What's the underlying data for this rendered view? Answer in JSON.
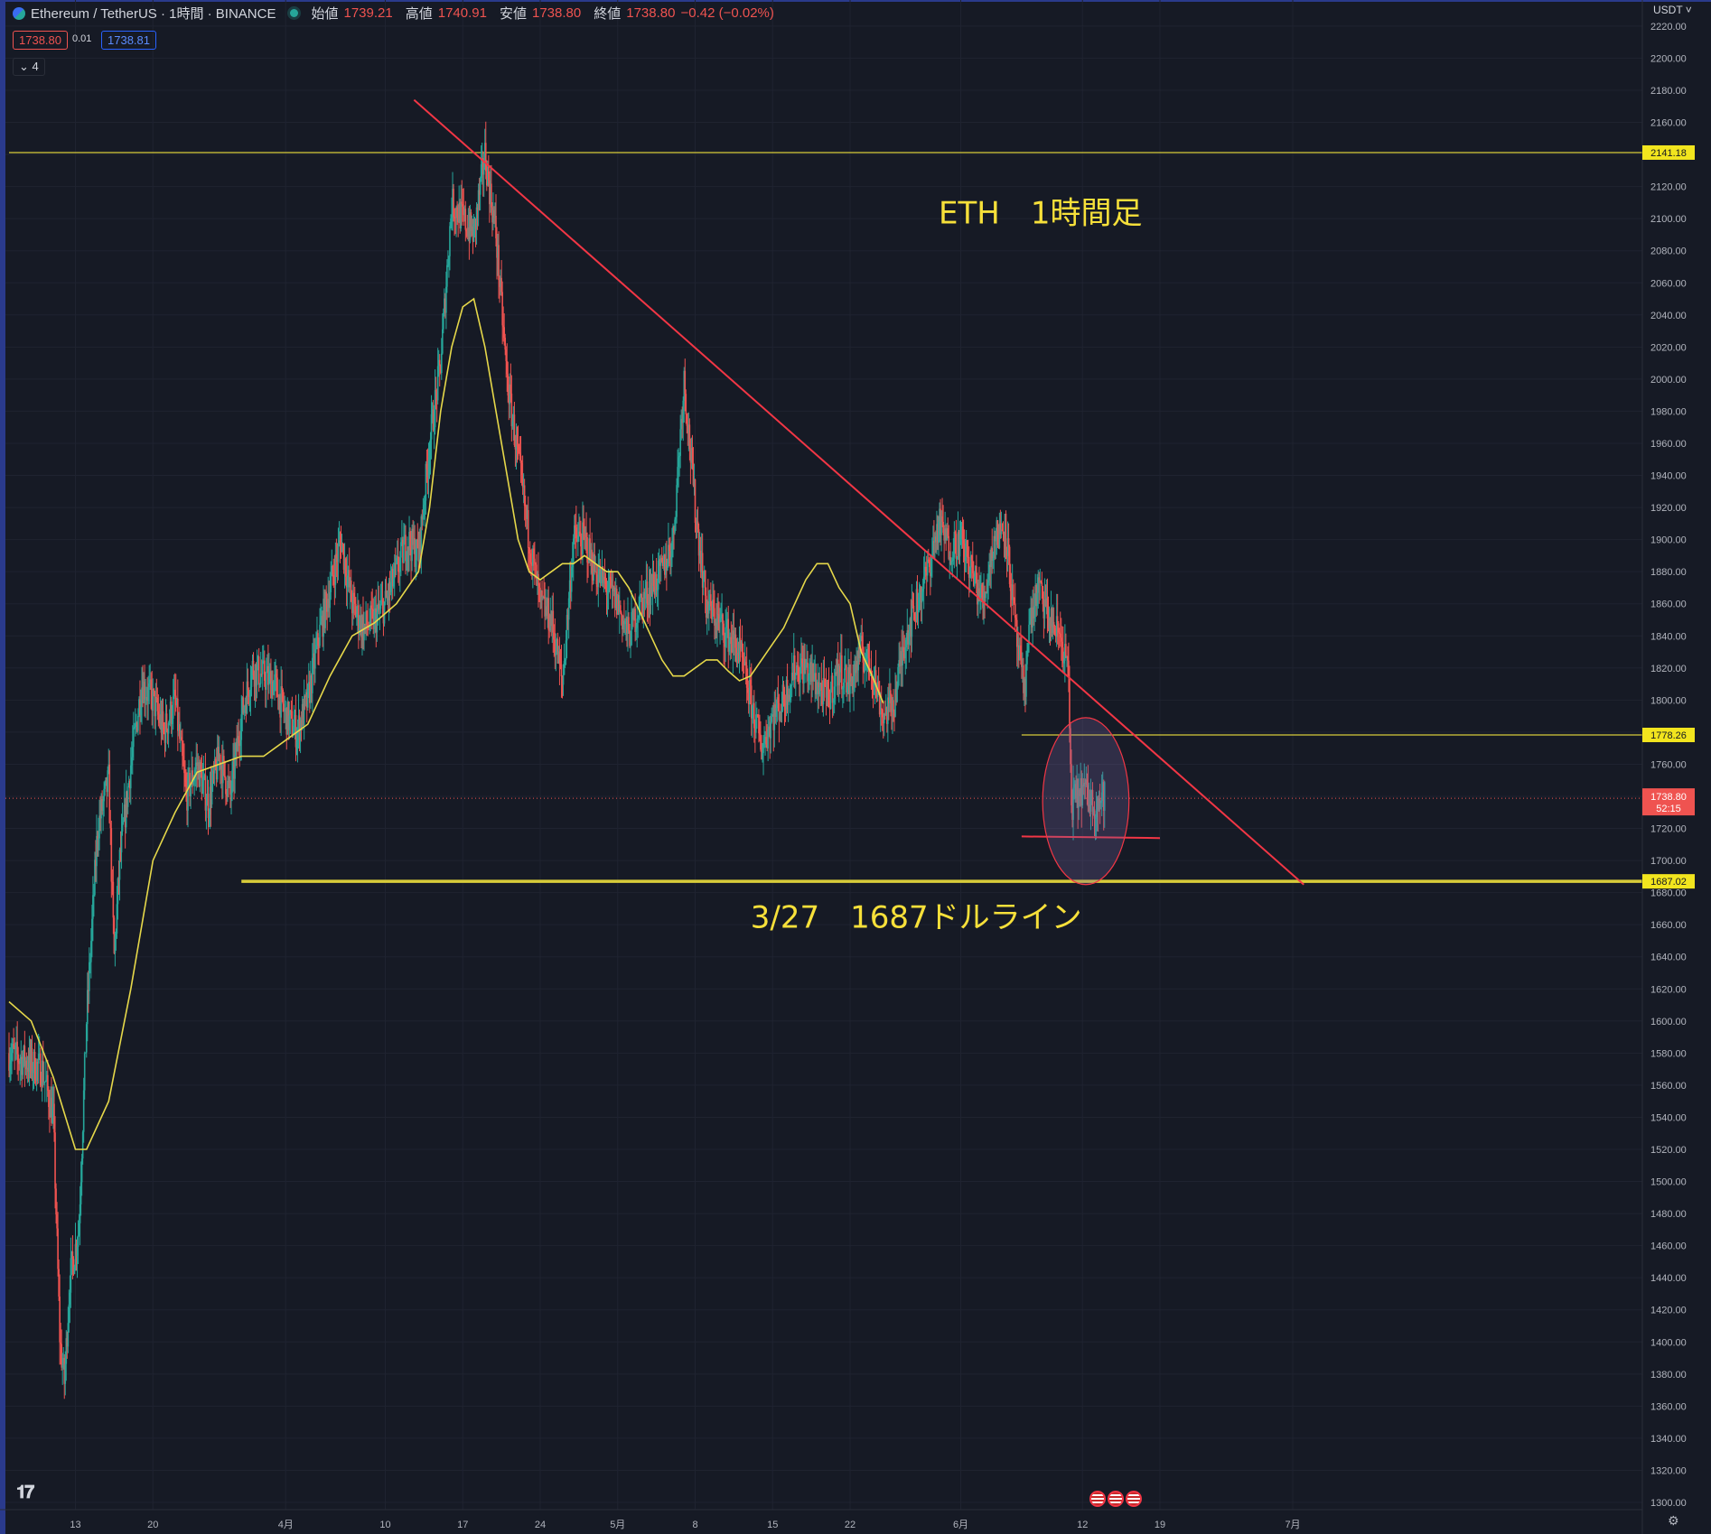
{
  "header": {
    "symbol": "Ethereum / TetherUS · 1時間 · BINANCE",
    "open_label": "始値",
    "open": "1739.21",
    "high_label": "高値",
    "high": "1740.91",
    "low_label": "安値",
    "low": "1738.80",
    "close_label": "終値",
    "close": "1738.80",
    "change": "−0.42 (−0.02%)"
  },
  "quote": {
    "bid": "1738.80",
    "spread": "0.01",
    "ask": "1738.81"
  },
  "indicators_collapse": "4",
  "currency": "USDT",
  "colors": {
    "background": "#161a25",
    "up": "#26a69a",
    "down": "#ef5350",
    "ma": "#e6d84a",
    "trendline": "#f23645",
    "hline": "#d8cc3a",
    "text_annotation": "#f7e03a"
  },
  "chart_data": {
    "type": "candlestick",
    "title": "ETH　1時間足",
    "symbol": "ETHUSDT",
    "timeframe": "1時間",
    "xlabel": "",
    "ylabel": "",
    "ylim": [
      1295,
      2225
    ],
    "y_ticks": [
      2220,
      2200,
      2180,
      2160,
      2140,
      2120,
      2100,
      2080,
      2060,
      2040,
      2020,
      2000,
      1980,
      1960,
      1940,
      1920,
      1900,
      1880,
      1860,
      1840,
      1820,
      1800,
      1780,
      1760,
      1740,
      1720,
      1700,
      1680,
      1660,
      1640,
      1620,
      1600,
      1580,
      1560,
      1540,
      1520,
      1500,
      1480,
      1460,
      1440,
      1420,
      1400,
      1380,
      1360,
      1340,
      1320,
      1300
    ],
    "x_ticks": [
      {
        "label": "13",
        "t": 6
      },
      {
        "label": "20",
        "t": 13
      },
      {
        "label": "4月",
        "t": 25
      },
      {
        "label": "10",
        "t": 34
      },
      {
        "label": "17",
        "t": 41
      },
      {
        "label": "24",
        "t": 48
      },
      {
        "label": "5月",
        "t": 55
      },
      {
        "label": "8",
        "t": 62
      },
      {
        "label": "15",
        "t": 69
      },
      {
        "label": "22",
        "t": 76
      },
      {
        "label": "6月",
        "t": 86
      },
      {
        "label": "12",
        "t": 97
      },
      {
        "label": "19",
        "t": 104
      },
      {
        "label": "7月",
        "t": 116
      }
    ],
    "x_note": "t = days elapsed since 7 March (the first date on the chart); tick labels show calendar day / month",
    "price_path": [
      [
        0,
        1580
      ],
      [
        3,
        1570
      ],
      [
        4,
        1540
      ],
      [
        4.6,
        1400
      ],
      [
        5,
        1375
      ],
      [
        5.5,
        1440
      ],
      [
        6.3,
        1470
      ],
      [
        7,
        1600
      ],
      [
        8,
        1720
      ],
      [
        9,
        1750
      ],
      [
        9.5,
        1640
      ],
      [
        10,
        1700
      ],
      [
        11,
        1760
      ],
      [
        12,
        1810
      ],
      [
        13,
        1800
      ],
      [
        14,
        1780
      ],
      [
        15,
        1800
      ],
      [
        16,
        1740
      ],
      [
        17,
        1760
      ],
      [
        18,
        1735
      ],
      [
        19,
        1765
      ],
      [
        20,
        1740
      ],
      [
        21,
        1790
      ],
      [
        22,
        1820
      ],
      [
        24,
        1810
      ],
      [
        25,
        1790
      ],
      [
        26,
        1780
      ],
      [
        27,
        1800
      ],
      [
        28,
        1840
      ],
      [
        29,
        1870
      ],
      [
        30,
        1900
      ],
      [
        31,
        1860
      ],
      [
        32,
        1845
      ],
      [
        33,
        1850
      ],
      [
        34,
        1860
      ],
      [
        35,
        1880
      ],
      [
        36,
        1900
      ],
      [
        37,
        1890
      ],
      [
        38,
        1960
      ],
      [
        39,
        2010
      ],
      [
        40,
        2110
      ],
      [
        41,
        2100
      ],
      [
        42,
        2090
      ],
      [
        43,
        2140
      ],
      [
        44,
        2090
      ],
      [
        45,
        2000
      ],
      [
        46,
        1950
      ],
      [
        47,
        1900
      ],
      [
        48,
        1860
      ],
      [
        49,
        1850
      ],
      [
        50,
        1810
      ],
      [
        51,
        1900
      ],
      [
        52,
        1900
      ],
      [
        53,
        1880
      ],
      [
        54,
        1870
      ],
      [
        55,
        1860
      ],
      [
        56,
        1840
      ],
      [
        57,
        1860
      ],
      [
        58,
        1870
      ],
      [
        59,
        1880
      ],
      [
        60,
        1900
      ],
      [
        61,
        2000
      ],
      [
        62,
        1920
      ],
      [
        63,
        1860
      ],
      [
        64,
        1850
      ],
      [
        65,
        1840
      ],
      [
        66,
        1830
      ],
      [
        67,
        1800
      ],
      [
        68,
        1770
      ],
      [
        69,
        1790
      ],
      [
        70,
        1800
      ],
      [
        71,
        1820
      ],
      [
        72,
        1820
      ],
      [
        73,
        1810
      ],
      [
        74,
        1800
      ],
      [
        75,
        1820
      ],
      [
        76,
        1810
      ],
      [
        77,
        1830
      ],
      [
        78,
        1820
      ],
      [
        79,
        1790
      ],
      [
        80,
        1800
      ],
      [
        81,
        1840
      ],
      [
        82,
        1860
      ],
      [
        83,
        1880
      ],
      [
        84,
        1910
      ],
      [
        85,
        1895
      ],
      [
        86,
        1900
      ],
      [
        87,
        1880
      ],
      [
        88,
        1860
      ],
      [
        89,
        1900
      ],
      [
        90,
        1910
      ],
      [
        91,
        1840
      ],
      [
        91.8,
        1800
      ],
      [
        92,
        1840
      ],
      [
        93,
        1870
      ],
      [
        94,
        1850
      ],
      [
        95,
        1840
      ],
      [
        95.7,
        1820
      ],
      [
        96,
        1735
      ],
      [
        97,
        1745
      ],
      [
        98,
        1735
      ],
      [
        99,
        1740
      ]
    ],
    "moving_average_path": [
      [
        0,
        1612
      ],
      [
        2,
        1600
      ],
      [
        4,
        1565
      ],
      [
        6,
        1520
      ],
      [
        7,
        1520
      ],
      [
        9,
        1550
      ],
      [
        11,
        1620
      ],
      [
        13,
        1700
      ],
      [
        15,
        1730
      ],
      [
        17,
        1755
      ],
      [
        19,
        1760
      ],
      [
        21,
        1765
      ],
      [
        23,
        1765
      ],
      [
        25,
        1775
      ],
      [
        27,
        1785
      ],
      [
        29,
        1815
      ],
      [
        31,
        1840
      ],
      [
        33,
        1848
      ],
      [
        35,
        1860
      ],
      [
        37,
        1880
      ],
      [
        38,
        1920
      ],
      [
        39,
        1980
      ],
      [
        40,
        2020
      ],
      [
        41,
        2045
      ],
      [
        42,
        2050
      ],
      [
        43,
        2020
      ],
      [
        44,
        1980
      ],
      [
        45,
        1940
      ],
      [
        46,
        1900
      ],
      [
        47,
        1880
      ],
      [
        48,
        1875
      ],
      [
        49,
        1880
      ],
      [
        50,
        1885
      ],
      [
        51,
        1885
      ],
      [
        52,
        1890
      ],
      [
        53,
        1885
      ],
      [
        54,
        1880
      ],
      [
        55,
        1880
      ],
      [
        56,
        1870
      ],
      [
        57,
        1855
      ],
      [
        58,
        1840
      ],
      [
        59,
        1825
      ],
      [
        60,
        1815
      ],
      [
        61,
        1815
      ],
      [
        62,
        1820
      ],
      [
        63,
        1825
      ],
      [
        64,
        1825
      ],
      [
        65,
        1818
      ],
      [
        66,
        1812
      ],
      [
        67,
        1815
      ],
      [
        68,
        1825
      ],
      [
        69,
        1835
      ],
      [
        70,
        1845
      ],
      [
        71,
        1860
      ],
      [
        72,
        1875
      ],
      [
        73,
        1885
      ],
      [
        74,
        1885
      ],
      [
        75,
        1870
      ],
      [
        76,
        1860
      ],
      [
        77,
        1830
      ],
      [
        78,
        1815
      ],
      [
        79,
        1798
      ]
    ],
    "current_price": {
      "value": 1738.8,
      "label": "1738.80",
      "countdown": "52:15"
    },
    "horizontal_lines": [
      {
        "value": 2141.18,
        "label": "2141.18",
        "from_t": 0,
        "style": "thin"
      },
      {
        "value": 1778.26,
        "label": "1778.26",
        "from_t": 91.5,
        "style": "thin"
      },
      {
        "value": 1687.02,
        "label": "1687.02",
        "from_t": 21,
        "style": "thick"
      }
    ],
    "trendlines": [
      {
        "from": [
          36.6,
          2174
        ],
        "to": [
          117,
          1685
        ]
      },
      {
        "from": [
          91.5,
          1715
        ],
        "to": [
          104,
          1714
        ]
      }
    ],
    "ellipse": {
      "center": [
        97.3,
        1737
      ],
      "rt": 3.9,
      "rv": 52
    },
    "annotations": [
      {
        "text": "ETH　1時間足",
        "at": [
          84,
          2097
        ]
      },
      {
        "text": "3/27　1687ドルライン",
        "at": [
          67,
          1658
        ]
      }
    ]
  }
}
